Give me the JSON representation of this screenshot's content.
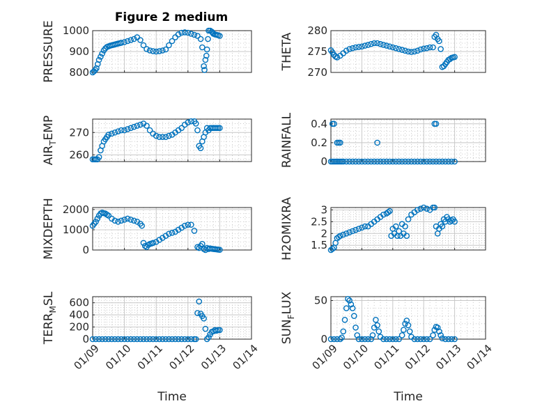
{
  "figure_title": "Figure 2 medium",
  "colors": {
    "marker": "#0072BD",
    "axes": "#262626",
    "grid": "#c8c8c8",
    "background": "#ffffff"
  },
  "chart_data": [
    {
      "type": "scatter",
      "name": "pressure",
      "ylabel": "PRESSURE",
      "ylim": [
        800,
        1000
      ],
      "yticks": [
        800,
        900,
        1000
      ],
      "xlim": [
        0,
        5
      ],
      "xticks": [
        0,
        1,
        2,
        3,
        4,
        5
      ],
      "xticklabels": [],
      "grid": true,
      "series": [
        {
          "x": [
            0,
            0.04,
            0.08,
            0.12,
            0.16,
            0.2,
            0.25,
            0.3,
            0.35,
            0.4,
            0.45,
            0.5,
            0.55,
            0.6,
            0.65,
            0.7,
            0.75,
            0.8,
            0.85,
            0.9,
            1.0,
            1.1,
            1.2,
            1.3,
            1.4,
            1.5,
            1.6,
            1.7,
            1.8,
            1.9,
            2.0,
            2.1,
            2.2,
            2.3,
            2.4,
            2.5,
            2.6,
            2.7,
            2.8,
            2.9,
            3.0,
            3.1,
            3.2,
            3.3,
            3.4,
            3.45,
            3.5,
            3.52,
            3.55,
            3.58,
            3.6,
            3.63,
            3.65,
            3.7,
            3.75,
            3.78,
            3.8,
            3.85,
            3.9,
            3.95,
            4.0
          ],
          "y": [
            800,
            805,
            812,
            820,
            840,
            860,
            875,
            890,
            905,
            915,
            922,
            925,
            928,
            930,
            932,
            934,
            936,
            938,
            940,
            942,
            945,
            950,
            955,
            960,
            968,
            955,
            930,
            912,
            905,
            902,
            900,
            902,
            905,
            910,
            930,
            950,
            968,
            982,
            990,
            992,
            990,
            985,
            980,
            975,
            960,
            920,
            830,
            812,
            860,
            880,
            910,
            960,
            1000,
            1000,
            995,
            990,
            985,
            982,
            980,
            978,
            975
          ]
        }
      ]
    },
    {
      "type": "scatter",
      "name": "theta",
      "ylabel": "THETA",
      "ylim": [
        270,
        280
      ],
      "yticks": [
        270,
        275,
        280
      ],
      "xlim": [
        0,
        5
      ],
      "xticks": [
        0,
        1,
        2,
        3,
        4,
        5
      ],
      "xticklabels": [],
      "grid": true,
      "series": [
        {
          "x": [
            0,
            0.05,
            0.1,
            0.15,
            0.2,
            0.3,
            0.4,
            0.5,
            0.6,
            0.7,
            0.8,
            0.9,
            1.0,
            1.1,
            1.2,
            1.3,
            1.4,
            1.5,
            1.6,
            1.7,
            1.8,
            1.9,
            2.0,
            2.1,
            2.2,
            2.3,
            2.4,
            2.5,
            2.6,
            2.7,
            2.8,
            2.9,
            3.0,
            3.1,
            3.2,
            3.3,
            3.35,
            3.4,
            3.45,
            3.5,
            3.55,
            3.6,
            3.65,
            3.7,
            3.75,
            3.8,
            3.85,
            3.9,
            3.95,
            4.0
          ],
          "y": [
            275.3,
            274.8,
            274.2,
            273.8,
            273.6,
            274.0,
            274.6,
            275.2,
            275.6,
            275.8,
            276.0,
            276.1,
            276.2,
            276.4,
            276.6,
            276.8,
            277.0,
            277.0,
            276.8,
            276.6,
            276.4,
            276.2,
            276.0,
            275.8,
            275.6,
            275.4,
            275.2,
            275.0,
            274.9,
            275.0,
            275.2,
            275.5,
            275.7,
            275.8,
            276.0,
            276.0,
            278.5,
            279.0,
            278.0,
            277.5,
            275.6,
            271.3,
            271.5,
            272.0,
            272.5,
            273.0,
            273.2,
            273.5,
            273.6,
            273.7
          ]
        }
      ]
    },
    {
      "type": "scatter",
      "name": "air-temp",
      "ylabel": "AIR_TEMP",
      "ylabel_parts": [
        "AIR",
        "T",
        "EMP"
      ],
      "ylim": [
        257,
        276
      ],
      "yticks": [
        260,
        270
      ],
      "xlim": [
        0,
        5
      ],
      "xticks": [
        0,
        1,
        2,
        3,
        4,
        5
      ],
      "xticklabels": [],
      "grid": true,
      "series": [
        {
          "x": [
            0,
            0.05,
            0.1,
            0.15,
            0.2,
            0.25,
            0.3,
            0.35,
            0.4,
            0.45,
            0.5,
            0.6,
            0.7,
            0.8,
            0.9,
            1.0,
            1.1,
            1.2,
            1.3,
            1.4,
            1.5,
            1.6,
            1.7,
            1.8,
            1.9,
            2.0,
            2.1,
            2.2,
            2.3,
            2.4,
            2.5,
            2.6,
            2.7,
            2.8,
            2.9,
            3.0,
            3.1,
            3.2,
            3.25,
            3.3,
            3.35,
            3.4,
            3.45,
            3.5,
            3.55,
            3.6,
            3.65,
            3.7,
            3.75,
            3.8,
            3.85,
            3.9,
            3.95,
            4.0
          ],
          "y": [
            258,
            258,
            258,
            258,
            259,
            262,
            264,
            266,
            267,
            268,
            269,
            269.5,
            270,
            270.5,
            271,
            271,
            271.5,
            272,
            272.5,
            273,
            273.5,
            274,
            273,
            271,
            269.5,
            268.5,
            268,
            268,
            268,
            268.5,
            269,
            270,
            271,
            272,
            273.5,
            274.5,
            275,
            275,
            274,
            271,
            264,
            263,
            266,
            268,
            270,
            272,
            271,
            272,
            272,
            272,
            272,
            272,
            272,
            272
          ]
        }
      ]
    },
    {
      "type": "scatter",
      "name": "rainfall",
      "ylabel": "RAINFALL",
      "ylim": [
        0,
        0.45
      ],
      "yticks": [
        0,
        0.2,
        0.4
      ],
      "xlim": [
        0,
        5
      ],
      "xticks": [
        0,
        1,
        2,
        3,
        4,
        5
      ],
      "xticklabels": [],
      "grid": true,
      "series": [
        {
          "x": [
            0.0,
            0.05,
            0.1,
            0.15,
            0.2,
            0.25,
            0.3,
            0.35,
            0.4,
            0.5,
            0.6,
            0.7,
            0.8,
            0.9,
            1.0,
            1.1,
            1.2,
            1.3,
            1.4,
            1.5,
            1.6,
            1.7,
            1.8,
            1.9,
            2.0,
            2.1,
            2.2,
            2.3,
            2.4,
            2.5,
            2.6,
            2.7,
            2.8,
            2.9,
            3.0,
            3.1,
            3.2,
            3.3,
            3.4,
            3.5,
            3.6,
            3.7,
            3.8,
            3.9,
            4.0,
            0.05,
            0.1,
            0.2,
            0.25,
            0.3,
            1.5,
            3.35,
            3.4
          ],
          "y": [
            0,
            0,
            0,
            0,
            0,
            0,
            0,
            0,
            0,
            0,
            0,
            0,
            0,
            0,
            0,
            0,
            0,
            0,
            0,
            0,
            0,
            0,
            0,
            0,
            0,
            0,
            0,
            0,
            0,
            0,
            0,
            0,
            0,
            0,
            0,
            0,
            0,
            0,
            0,
            0,
            0,
            0,
            0,
            0,
            0,
            0.4,
            0.4,
            0.2,
            0.2,
            0.2,
            0.2,
            0.4,
            0.4
          ]
        }
      ]
    },
    {
      "type": "scatter",
      "name": "mixdepth",
      "ylabel": "MIXDEPTH",
      "ylim": [
        0,
        2100
      ],
      "yticks": [
        0,
        1000,
        2000
      ],
      "xlim": [
        0,
        5
      ],
      "xticks": [
        0,
        1,
        2,
        3,
        4,
        5
      ],
      "xticklabels": [],
      "grid": true,
      "series": [
        {
          "x": [
            0,
            0.05,
            0.1,
            0.15,
            0.2,
            0.25,
            0.3,
            0.35,
            0.4,
            0.45,
            0.5,
            0.6,
            0.7,
            0.8,
            0.9,
            1.0,
            1.1,
            1.2,
            1.3,
            1.4,
            1.5,
            1.55,
            1.6,
            1.65,
            1.7,
            1.75,
            1.8,
            1.85,
            1.9,
            2.0,
            2.1,
            2.2,
            2.3,
            2.4,
            2.5,
            2.6,
            2.7,
            2.8,
            2.9,
            3.0,
            3.1,
            3.2,
            3.3,
            3.35,
            3.4,
            3.45,
            3.5,
            3.55,
            3.6,
            3.65,
            3.7,
            3.75,
            3.8,
            3.85,
            3.9,
            3.95,
            4.0
          ],
          "y": [
            1200,
            1300,
            1400,
            1550,
            1700,
            1800,
            1850,
            1820,
            1800,
            1750,
            1700,
            1550,
            1450,
            1400,
            1450,
            1500,
            1550,
            1500,
            1450,
            1400,
            1300,
            1200,
            350,
            200,
            150,
            250,
            300,
            320,
            350,
            400,
            500,
            600,
            700,
            800,
            850,
            900,
            1000,
            1100,
            1200,
            1250,
            1250,
            950,
            150,
            100,
            200,
            300,
            50,
            0,
            100,
            50,
            80,
            60,
            50,
            40,
            30,
            20,
            10
          ]
        }
      ]
    },
    {
      "type": "scatter",
      "name": "h2omixra",
      "ylabel": "H2OMIXRA",
      "ylim": [
        1.3,
        3.1
      ],
      "yticks": [
        1.5,
        2,
        2.5,
        3
      ],
      "xlim": [
        0,
        5
      ],
      "xticks": [
        0,
        1,
        2,
        3,
        4,
        5
      ],
      "xticklabels": [],
      "grid": true,
      "series": [
        {
          "x": [
            0,
            0.05,
            0.1,
            0.15,
            0.2,
            0.25,
            0.3,
            0.4,
            0.5,
            0.6,
            0.7,
            0.8,
            0.9,
            1.0,
            1.1,
            1.2,
            1.3,
            1.4,
            1.5,
            1.6,
            1.7,
            1.8,
            1.85,
            1.9,
            1.95,
            2.0,
            2.05,
            2.1,
            2.15,
            2.2,
            2.25,
            2.3,
            2.35,
            2.4,
            2.45,
            2.5,
            2.6,
            2.7,
            2.8,
            2.9,
            3.0,
            3.1,
            3.2,
            3.3,
            3.35,
            3.4,
            3.45,
            3.5,
            3.55,
            3.6,
            3.65,
            3.7,
            3.75,
            3.8,
            3.85,
            3.9,
            3.95,
            4.0
          ],
          "y": [
            1.3,
            1.35,
            1.4,
            1.6,
            1.8,
            1.85,
            1.9,
            1.95,
            2.0,
            2.05,
            2.1,
            2.15,
            2.2,
            2.25,
            2.3,
            2.3,
            2.4,
            2.5,
            2.6,
            2.7,
            2.8,
            2.85,
            2.9,
            2.95,
            1.9,
            2.2,
            2.0,
            2.3,
            1.9,
            2.1,
            1.9,
            2.4,
            2.0,
            2.3,
            1.9,
            2.6,
            2.8,
            2.9,
            3.0,
            3.05,
            3.1,
            3.05,
            3.0,
            3.1,
            3.1,
            2.3,
            2.0,
            2.2,
            2.4,
            2.3,
            2.6,
            2.5,
            2.7,
            2.6,
            2.5,
            2.55,
            2.6,
            2.5
          ]
        }
      ]
    },
    {
      "type": "scatter",
      "name": "terr-msl",
      "ylabel": "TERR_MSL",
      "ylabel_parts": [
        "TERR",
        "M",
        "SL"
      ],
      "ylim": [
        0,
        700
      ],
      "yticks": [
        0,
        200,
        400,
        600
      ],
      "xlim": [
        0,
        5
      ],
      "xticks": [
        0,
        1,
        2,
        3,
        4,
        5
      ],
      "xticklabels": [
        "01/09",
        "01/10",
        "01/11",
        "01/12",
        "01/13",
        "01/14"
      ],
      "xlabel": "Time",
      "grid": true,
      "series": [
        {
          "x": [
            0,
            0.1,
            0.2,
            0.3,
            0.4,
            0.5,
            0.6,
            0.7,
            0.8,
            0.9,
            1.0,
            1.1,
            1.2,
            1.3,
            1.4,
            1.5,
            1.6,
            1.7,
            1.8,
            1.9,
            2.0,
            2.1,
            2.2,
            2.3,
            2.4,
            2.5,
            2.6,
            2.7,
            2.8,
            2.9,
            3.0,
            3.1,
            3.2,
            3.25,
            3.3,
            3.35,
            3.4,
            3.45,
            3.5,
            3.55,
            3.6,
            3.65,
            3.7,
            3.75,
            3.8,
            3.85,
            3.9,
            3.95,
            4.0
          ],
          "y": [
            0,
            0,
            0,
            0,
            0,
            0,
            0,
            0,
            0,
            0,
            0,
            0,
            0,
            0,
            0,
            0,
            0,
            0,
            0,
            0,
            0,
            0,
            0,
            0,
            0,
            0,
            0,
            0,
            0,
            0,
            0,
            0,
            0,
            0,
            430,
            620,
            420,
            380,
            340,
            170,
            0,
            30,
            80,
            120,
            130,
            150,
            140,
            150,
            150
          ]
        }
      ]
    },
    {
      "type": "scatter",
      "name": "sun-flux",
      "ylabel": "SUN_FLUX",
      "ylabel_parts": [
        "SUN",
        "F",
        "LUX"
      ],
      "ylim": [
        0,
        55
      ],
      "yticks": [
        0,
        50
      ],
      "xlim": [
        0,
        5
      ],
      "xticks": [
        0,
        1,
        2,
        3,
        4,
        5
      ],
      "xticklabels": [
        "01/09",
        "01/10",
        "01/11",
        "01/12",
        "01/13",
        "01/14"
      ],
      "xlabel": "Time",
      "grid": true,
      "series": [
        {
          "x": [
            0,
            0.1,
            0.2,
            0.3,
            0.35,
            0.4,
            0.45,
            0.5,
            0.55,
            0.6,
            0.65,
            0.7,
            0.75,
            0.8,
            0.85,
            0.9,
            1.0,
            1.1,
            1.2,
            1.3,
            1.35,
            1.4,
            1.45,
            1.5,
            1.55,
            1.6,
            1.7,
            1.8,
            1.9,
            2.0,
            2.1,
            2.2,
            2.3,
            2.35,
            2.4,
            2.45,
            2.5,
            2.55,
            2.6,
            2.7,
            2.8,
            2.9,
            3.0,
            3.1,
            3.2,
            3.3,
            3.35,
            3.4,
            3.45,
            3.5,
            3.55,
            3.6,
            3.7,
            3.8,
            3.9,
            4.0
          ],
          "y": [
            0,
            0,
            0,
            0,
            2,
            10,
            25,
            40,
            52,
            50,
            45,
            40,
            30,
            15,
            5,
            0,
            0,
            0,
            0,
            0,
            5,
            15,
            25,
            18,
            10,
            3,
            0,
            0,
            0,
            0,
            0,
            0,
            5,
            12,
            20,
            24,
            18,
            10,
            3,
            0,
            0,
            0,
            0,
            0,
            0,
            5,
            12,
            16,
            15,
            10,
            5,
            1,
            0,
            0,
            0,
            0
          ]
        }
      ]
    }
  ]
}
